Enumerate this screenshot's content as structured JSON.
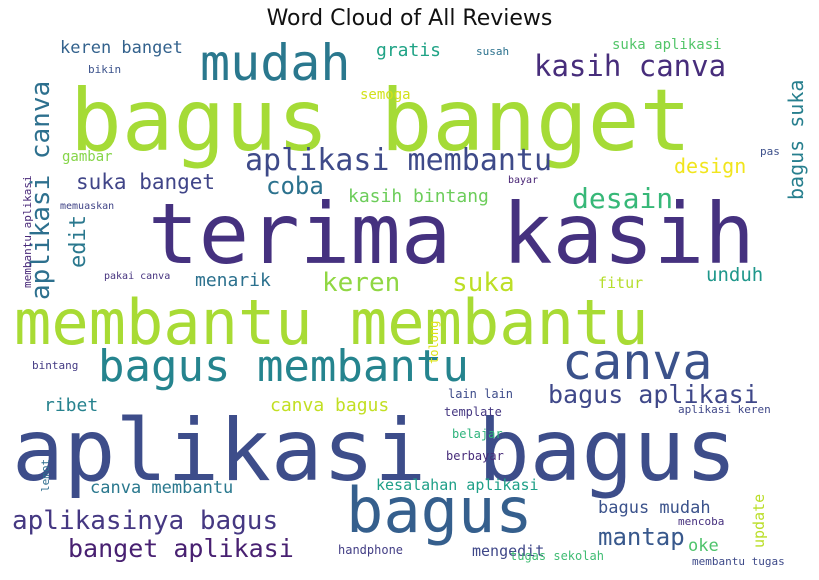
{
  "chart_data": {
    "type": "wordcloud",
    "title": "Word Cloud of All Reviews",
    "colormap": [
      "#440154",
      "#3b528b",
      "#21918c",
      "#5ec962",
      "#a8db34",
      "#fde725"
    ],
    "words": [
      {
        "text": "terima kasih",
        "color": "#45317f"
      },
      {
        "text": "bagus banget",
        "color": "#a5db36"
      },
      {
        "text": "aplikasi bagus",
        "color": "#3d4d8a"
      },
      {
        "text": "membantu membantu",
        "color": "#a8db34"
      },
      {
        "text": "bagus",
        "color": "#355f8d"
      },
      {
        "text": "mudah",
        "color": "#2a788e"
      },
      {
        "text": "canva",
        "color": "#3b528b"
      },
      {
        "text": "bagus membantu",
        "color": "#25848e"
      },
      {
        "text": "aplikasi membantu",
        "color": "#3e4a89"
      },
      {
        "text": "kasih canva",
        "color": "#472d7b"
      },
      {
        "text": "aplikasi canva",
        "color": "#2d708e"
      },
      {
        "text": "desain",
        "color": "#37b878"
      },
      {
        "text": "coba",
        "color": "#2c728e"
      },
      {
        "text": "keren",
        "color": "#90d743"
      },
      {
        "text": "suka",
        "color": "#bddf26"
      },
      {
        "text": "aplikasinya bagus",
        "color": "#453882"
      },
      {
        "text": "bagus aplikasi",
        "color": "#3f4889"
      },
      {
        "text": "banget aplikasi",
        "color": "#482071"
      },
      {
        "text": "suka banget",
        "color": "#404588"
      },
      {
        "text": "kasih bintang",
        "color": "#6ccd5a"
      },
      {
        "text": "mantap",
        "color": "#38588c"
      },
      {
        "text": "bagus suka",
        "color": "#277f8e"
      },
      {
        "text": "edit",
        "color": "#2a788e"
      },
      {
        "text": "menarik",
        "color": "#2c718e"
      },
      {
        "text": "canva bagus",
        "color": "#c2df23"
      },
      {
        "text": "keren banget",
        "color": "#33628d"
      },
      {
        "text": "gratis",
        "color": "#20a386"
      },
      {
        "text": "unduh",
        "color": "#1f978b"
      },
      {
        "text": "design",
        "color": "#f1e51d"
      },
      {
        "text": "canva membantu",
        "color": "#2a788e"
      },
      {
        "text": "ribet",
        "color": "#26828e"
      },
      {
        "text": "bagus mudah",
        "color": "#3b528b"
      },
      {
        "text": "kesalahan aplikasi",
        "color": "#1fa088"
      },
      {
        "text": "suka aplikasi",
        "color": "#52c569"
      },
      {
        "text": "mengedit",
        "color": "#3f4788"
      },
      {
        "text": "update",
        "color": "#bade28"
      },
      {
        "text": "oke",
        "color": "#4ec36b"
      },
      {
        "text": "semoga",
        "color": "#d2e21b"
      },
      {
        "text": "gambar",
        "color": "#86d549"
      },
      {
        "text": "fitur",
        "color": "#b5de2b"
      },
      {
        "text": "tolong",
        "color": "#dde318"
      },
      {
        "text": "lain lain",
        "color": "#3e4c8a"
      },
      {
        "text": "template",
        "color": "#453781"
      },
      {
        "text": "belajar",
        "color": "#2eb37c"
      },
      {
        "text": "berbayar",
        "color": "#472c7a"
      },
      {
        "text": "handphone",
        "color": "#433e85"
      },
      {
        "text": "tugas sekolah",
        "color": "#3fbc73"
      },
      {
        "text": "mencoba",
        "color": "#46307e"
      },
      {
        "text": "membantu tugas",
        "color": "#3e4a89"
      },
      {
        "text": "aplikasi keren",
        "color": "#3f4788"
      },
      {
        "text": "bintang",
        "color": "#443b84"
      },
      {
        "text": "lemot",
        "color": "#2e6e8e"
      },
      {
        "text": "membantu aplikasi",
        "color": "#482878"
      },
      {
        "text": "memuaskan",
        "color": "#414487"
      },
      {
        "text": "pakai canva",
        "color": "#46337f"
      },
      {
        "text": "susah",
        "color": "#2c728e"
      },
      {
        "text": "bikin",
        "color": "#3b528b"
      },
      {
        "text": "bayar",
        "color": "#482475"
      },
      {
        "text": "pas",
        "color": "#3c4f8a"
      }
    ]
  }
}
